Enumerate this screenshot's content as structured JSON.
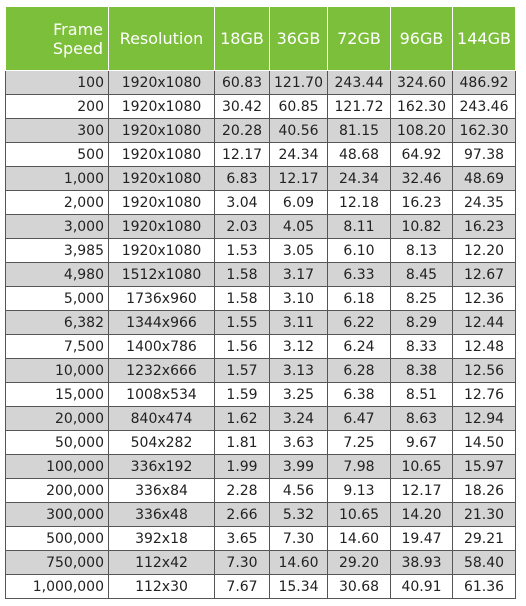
{
  "headers": [
    "Frame\nSpeed",
    "Resolution",
    "18GB",
    "36GB",
    "72GB",
    "96GB",
    "144GB"
  ],
  "header_bg": "#7cbf3a",
  "rows": [
    [
      "100",
      "1920x1080",
      "60.83",
      "121.70",
      "243.44",
      "324.60",
      "486.92"
    ],
    [
      "200",
      "1920x1080",
      "30.42",
      "60.85",
      "121.72",
      "162.30",
      "243.46"
    ],
    [
      "300",
      "1920x1080",
      "20.28",
      "40.56",
      "81.15",
      "108.20",
      "162.30"
    ],
    [
      "500",
      "1920x1080",
      "12.17",
      "24.34",
      "48.68",
      "64.92",
      "97.38"
    ],
    [
      "1,000",
      "1920x1080",
      "6.83",
      "12.17",
      "24.34",
      "32.46",
      "48.69"
    ],
    [
      "2,000",
      "1920x1080",
      "3.04",
      "6.09",
      "12.18",
      "16.23",
      "24.35"
    ],
    [
      "3,000",
      "1920x1080",
      "2.03",
      "4.05",
      "8.11",
      "10.82",
      "16.23"
    ],
    [
      "3,985",
      "1920x1080",
      "1.53",
      "3.05",
      "6.10",
      "8.13",
      "12.20"
    ],
    [
      "4,980",
      "1512x1080",
      "1.58",
      "3.17",
      "6.33",
      "8.45",
      "12.67"
    ],
    [
      "5,000",
      "1736x960",
      "1.58",
      "3.10",
      "6.18",
      "8.25",
      "12.36"
    ],
    [
      "6,382",
      "1344x966",
      "1.55",
      "3.11",
      "6.22",
      "8.29",
      "12.44"
    ],
    [
      "7,500",
      "1400x786",
      "1.56",
      "3.12",
      "6.24",
      "8.33",
      "12.48"
    ],
    [
      "10,000",
      "1232x666",
      "1.57",
      "3.13",
      "6.28",
      "8.38",
      "12.56"
    ],
    [
      "15,000",
      "1008x534",
      "1.59",
      "3.25",
      "6.38",
      "8.51",
      "12.76"
    ],
    [
      "20,000",
      "840x474",
      "1.62",
      "3.24",
      "6.47",
      "8.63",
      "12.94"
    ],
    [
      "50,000",
      "504x282",
      "1.81",
      "3.63",
      "7.25",
      "9.67",
      "14.50"
    ],
    [
      "100,000",
      "336x192",
      "1.99",
      "3.99",
      "7.98",
      "10.65",
      "15.97"
    ],
    [
      "200,000",
      "336x84",
      "2.28",
      "4.56",
      "9.13",
      "12.17",
      "18.26"
    ],
    [
      "300,000",
      "336x48",
      "2.66",
      "5.32",
      "10.65",
      "14.20",
      "21.30"
    ],
    [
      "500,000",
      "392x18",
      "3.65",
      "7.30",
      "14.60",
      "19.47",
      "29.21"
    ],
    [
      "750,000",
      "112x42",
      "7.30",
      "14.60",
      "29.20",
      "38.93",
      "58.40"
    ],
    [
      "1,000,000",
      "112x30",
      "7.67",
      "15.34",
      "30.68",
      "40.91",
      "61.36"
    ]
  ]
}
